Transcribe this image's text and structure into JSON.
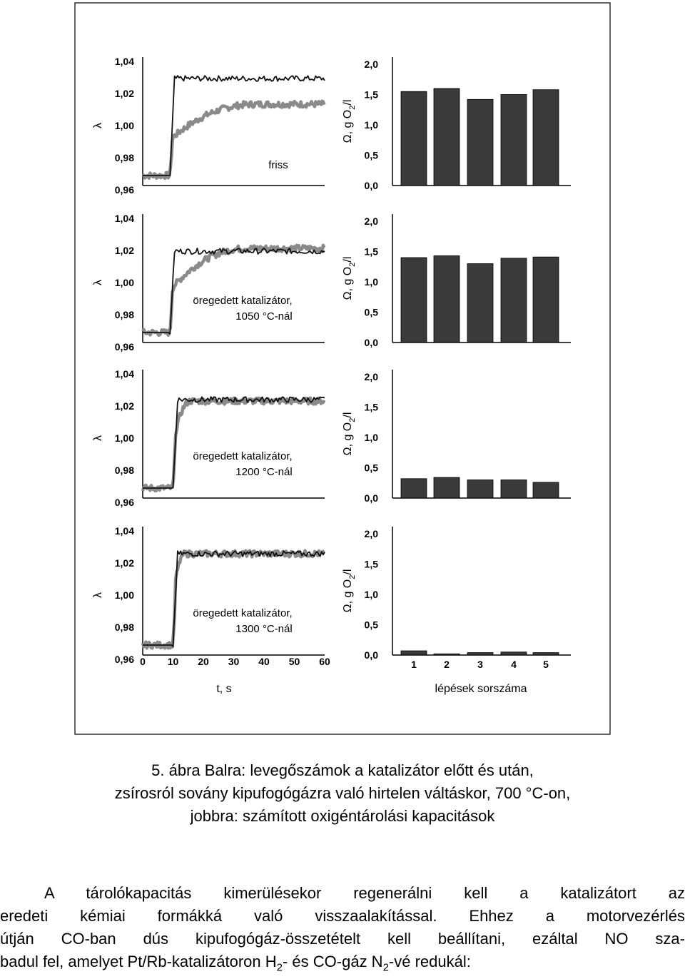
{
  "chart_data": [
    {
      "type": "line",
      "panel": "left",
      "ylabel": "λ",
      "xlabel": "t, s",
      "x_ticks": [
        "0",
        "10",
        "20",
        "30",
        "40",
        "50",
        "60"
      ],
      "xlim": [
        0,
        60
      ],
      "y_ticks": [
        "1,04",
        "1,02",
        "1,00",
        "0,98",
        "0,96"
      ],
      "ylim": [
        0.955,
        1.045
      ],
      "rows": [
        {
          "label_lines": [
            "friss"
          ],
          "step_at": 9,
          "black_final": 1.03,
          "gray_final": 1.012,
          "gray_rise_end": 38
        },
        {
          "label_lines": [
            "öregedett katalizátor,",
            "1050 °C-nál"
          ],
          "step_at": 9,
          "black_final": 1.019,
          "gray_final": 1.021,
          "gray_rise_end": 35
        },
        {
          "label_lines": [
            "öregedett katalizátor,",
            "1200 °C-nál"
          ],
          "step_at": 10,
          "black_final": 1.024,
          "gray_final": 1.023,
          "gray_rise_end": 16
        },
        {
          "label_lines": [
            "öregedett katalizátor,",
            "1300 °C-nál"
          ],
          "step_at": 10,
          "black_final": 1.026,
          "gray_final": 1.026,
          "gray_rise_end": 14
        }
      ]
    },
    {
      "type": "bar",
      "panel": "right",
      "ylabel": "Ω, g O₂/l",
      "ylabel_parts": {
        "pre": "Ω, g O",
        "sub": "2",
        "post": "/l"
      },
      "xlabel": "lépések sorszáma",
      "categories": [
        "1",
        "2",
        "3",
        "4",
        "5"
      ],
      "y_ticks": [
        "2,0",
        "1,5",
        "1,0",
        "0,5",
        "0,0"
      ],
      "ylim": [
        0,
        2.0
      ],
      "series": [
        {
          "values": [
            1.55,
            1.6,
            1.42,
            1.5,
            1.58
          ]
        },
        {
          "values": [
            1.4,
            1.43,
            1.3,
            1.39,
            1.41
          ]
        },
        {
          "values": [
            0.32,
            0.34,
            0.3,
            0.3,
            0.26
          ]
        },
        {
          "values": [
            0.07,
            0.02,
            0.04,
            0.05,
            0.04
          ]
        }
      ],
      "bar_color": "#3a3a3a"
    }
  ],
  "caption": {
    "lines": [
      "5. ábra Balra: levegőszámok a katalizátor előtt és után,",
      "zsírosról sovány kipufogógázra való hirtelen váltáskor, 700 °C-on,",
      "jobbra: számított oxigéntárolási kapacitások"
    ]
  },
  "body": {
    "line1": "A tárolókapacitás kimerülésekor regenerálni kell a katalizátort az",
    "line2": "eredeti kémiai formákká való visszaalakítással. Ehhez a motorvezérlés",
    "line3": "útján CO-ban dús kipufogógáz-összetételt kell beállítani, ezáltal NO sza-",
    "line4_a": "badul fel, amelyet Pt/Rb-katalizátoron H",
    "line4_sub1": "2",
    "line4_b": "- és CO-gáz N",
    "line4_sub2": "2",
    "line4_c": "-vé redukál:"
  },
  "colors": {
    "black_line": "#111111",
    "gray_line": "#8a8a8a",
    "frame": "#000000"
  }
}
